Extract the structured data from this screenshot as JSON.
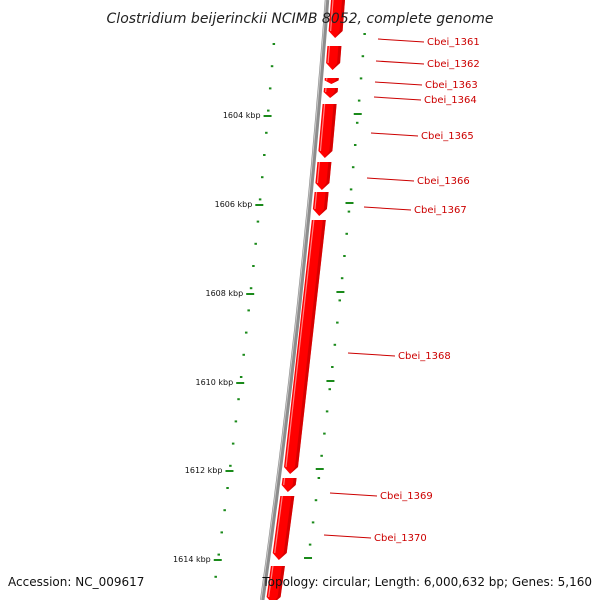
{
  "title": "Clostridium beijerinckii NCIMB 8052, complete genome",
  "footer": {
    "accession": "Accession: NC_009617",
    "summary": "Topology: circular; Length: 6,000,632 bp; Genes: 5,160"
  },
  "colors": {
    "gene": "#ff0000",
    "gene_dark": "#b80000",
    "backbone": "#8c8c8c",
    "tick": "#1a8a1a",
    "label": "#cc0000"
  },
  "ticks": [
    {
      "label": "1604 kbp"
    },
    {
      "label": "1606 kbp"
    },
    {
      "label": "1608 kbp"
    },
    {
      "label": "1610 kbp"
    },
    {
      "label": "1612 kbp"
    },
    {
      "label": "1614 kbp"
    }
  ],
  "genes": [
    {
      "label": "Cbei_1361"
    },
    {
      "label": "Cbei_1362"
    },
    {
      "label": "Cbei_1363"
    },
    {
      "label": "Cbei_1364"
    },
    {
      "label": "Cbei_1365"
    },
    {
      "label": "Cbei_1366"
    },
    {
      "label": "Cbei_1367"
    },
    {
      "label": "Cbei_1368"
    },
    {
      "label": "Cbei_1369"
    },
    {
      "label": "Cbei_1370"
    }
  ]
}
